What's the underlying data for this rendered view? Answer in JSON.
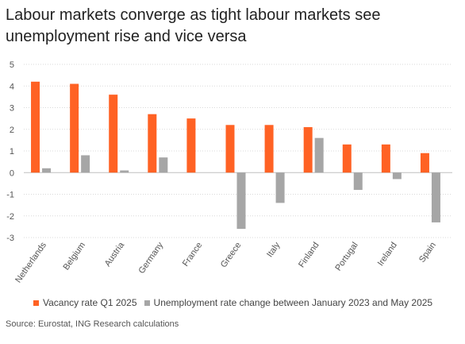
{
  "title": "Labour markets converge as tight labour markets see unemployment rise and vice versa",
  "source": "Source: Eurostat, ING Research calculations",
  "colors": {
    "vacancy": "#FF6224",
    "unemployment": "#A6A6A6",
    "grid": "#D9D9D9",
    "axis": "#BFBFBF"
  },
  "chart_data": {
    "type": "bar",
    "title": "Labour markets converge as tight labour markets see unemployment rise and vice versa",
    "categories": [
      "Netherlands",
      "Belgium",
      "Austria",
      "Germany",
      "France",
      "Greece",
      "Italy",
      "Finland",
      "Portugal",
      "Ireland",
      "Spain"
    ],
    "series": [
      {
        "name": "Vacancy rate Q1 2025",
        "color": "#FF6224",
        "values": [
          4.2,
          4.1,
          3.6,
          2.7,
          2.5,
          2.2,
          2.2,
          2.1,
          1.3,
          1.3,
          0.9
        ]
      },
      {
        "name": "Unemployment rate change between January 2023 and May 2025",
        "color": "#A6A6A6",
        "values": [
          0.2,
          0.8,
          0.1,
          0.7,
          0.0,
          -2.6,
          -1.4,
          1.6,
          -0.8,
          -0.3,
          -2.3
        ]
      }
    ],
    "ylim": [
      -3,
      5
    ],
    "yticks": [
      -3,
      -2,
      -1,
      0,
      1,
      2,
      3,
      4,
      5
    ],
    "grid": true,
    "legend": "bottom",
    "source": "Source: Eurostat, ING Research calculations"
  }
}
